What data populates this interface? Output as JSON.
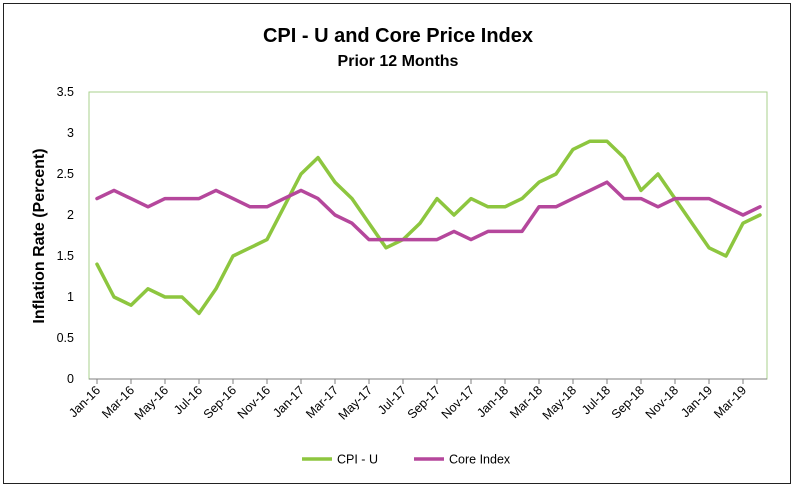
{
  "chart_data": {
    "type": "line",
    "title": "CPI - U and Core Price Index",
    "subtitle": "Prior 12 Months",
    "xlabel": "",
    "ylabel": "Inflation Rate (Percent)",
    "ylim": [
      0,
      3.5
    ],
    "yticks": [
      "0",
      "0.5",
      "1",
      "1.5",
      "2",
      "2.5",
      "3",
      "3.5"
    ],
    "grid": false,
    "legend_position": "bottom",
    "x": [
      "Jan-16",
      "Feb-16",
      "Mar-16",
      "Apr-16",
      "May-16",
      "Jun-16",
      "Jul-16",
      "Aug-16",
      "Sep-16",
      "Oct-16",
      "Nov-16",
      "Dec-16",
      "Jan-17",
      "Feb-17",
      "Mar-17",
      "Apr-17",
      "May-17",
      "Jun-17",
      "Jul-17",
      "Aug-17",
      "Sep-17",
      "Oct-17",
      "Nov-17",
      "Dec-17",
      "Jan-18",
      "Feb-18",
      "Mar-18",
      "Apr-18",
      "May-18",
      "Jun-18",
      "Jul-18",
      "Aug-18",
      "Sep-18",
      "Oct-18",
      "Nov-18",
      "Dec-18",
      "Jan-19",
      "Feb-19",
      "Mar-19",
      "Apr-19"
    ],
    "xtick_labels": [
      "Jan-16",
      "Mar-16",
      "May-16",
      "Jul-16",
      "Sep-16",
      "Nov-16",
      "Jan-17",
      "Mar-17",
      "May-17",
      "Jul-17",
      "Sep-17",
      "Nov-17",
      "Jan-18",
      "Mar-18",
      "May-18",
      "Jul-18",
      "Sep-18",
      "Nov-18",
      "Jan-19",
      "Mar-19"
    ],
    "series": [
      {
        "name": "CPI - U",
        "color": "#8dc63f",
        "values": [
          1.4,
          1.0,
          0.9,
          1.1,
          1.0,
          1.0,
          0.8,
          1.1,
          1.5,
          1.6,
          1.7,
          2.1,
          2.5,
          2.7,
          2.4,
          2.2,
          1.9,
          1.6,
          1.7,
          1.9,
          2.2,
          2.0,
          2.2,
          2.1,
          2.1,
          2.2,
          2.4,
          2.5,
          2.8,
          2.9,
          2.9,
          2.7,
          2.3,
          2.5,
          2.2,
          1.9,
          1.6,
          1.5,
          1.9,
          2.0
        ]
      },
      {
        "name": "Core Index",
        "color": "#b5479c",
        "values": [
          2.2,
          2.3,
          2.2,
          2.1,
          2.2,
          2.2,
          2.2,
          2.3,
          2.2,
          2.1,
          2.1,
          2.2,
          2.3,
          2.2,
          2.0,
          1.9,
          1.7,
          1.7,
          1.7,
          1.7,
          1.7,
          1.8,
          1.7,
          1.8,
          1.8,
          1.8,
          2.1,
          2.1,
          2.2,
          2.3,
          2.4,
          2.2,
          2.2,
          2.1,
          2.2,
          2.2,
          2.2,
          2.1,
          2.0,
          2.1
        ]
      }
    ]
  },
  "colors": {
    "plot_border": "#a9d18e",
    "axis": "#7f7f7f"
  }
}
